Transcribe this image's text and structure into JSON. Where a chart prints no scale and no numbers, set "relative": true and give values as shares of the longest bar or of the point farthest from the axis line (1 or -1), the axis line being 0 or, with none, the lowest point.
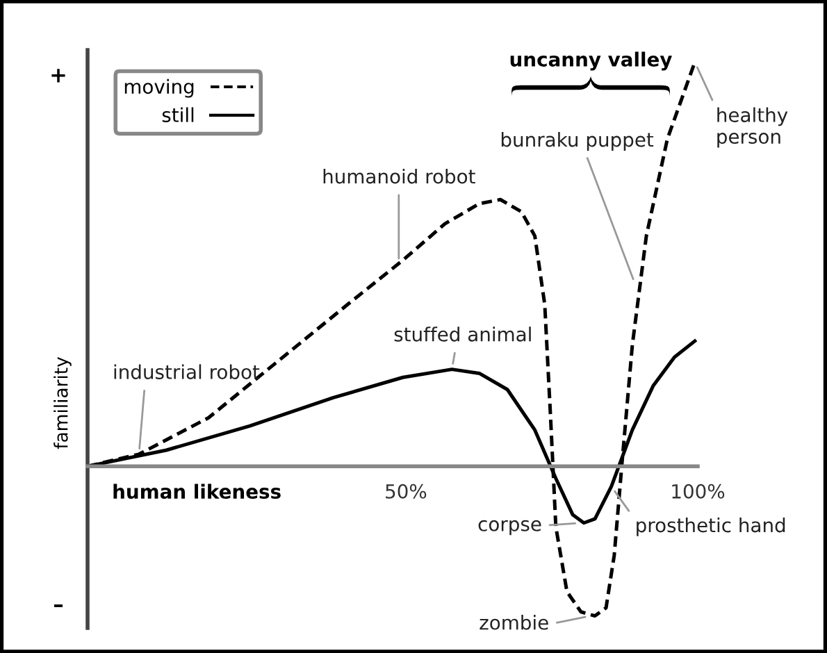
{
  "chart_data": {
    "type": "line",
    "relative": true,
    "xlabel": "human likeness",
    "ylabel": "familiarity",
    "xlim": [
      -4.5,
      100
    ],
    "xticks": [
      {
        "value": 50,
        "label": "50%"
      },
      {
        "value": 100,
        "label": "100%"
      }
    ],
    "legend": "top left",
    "grid": false,
    "marker": "none",
    "series": [
      {
        "name": "moving",
        "color": "#000000",
        "line_style": "dashed",
        "x": [
          -4.5,
          4.3,
          16.2,
          28.1,
          40,
          49.5,
          56.7,
          62.6,
          66.2,
          69.8,
          72.1,
          73.8,
          74.8,
          75.7,
          77.6,
          80,
          82.4,
          84.3,
          85.7,
          87.1,
          88.8,
          91.2,
          94.8,
          99.5
        ],
        "values": [
          0,
          0.03,
          0.12,
          0.26,
          0.4,
          0.51,
          0.6,
          0.65,
          0.66,
          0.63,
          0.57,
          0.4,
          0.12,
          -0.15,
          -0.31,
          -0.36,
          -0.37,
          -0.35,
          -0.22,
          0.02,
          0.3,
          0.57,
          0.81,
          1.0
        ]
      },
      {
        "name": "still",
        "color": "#000000",
        "line_style": "solid",
        "x": [
          -4.5,
          9,
          23.3,
          37.6,
          49.5,
          57.9,
          62.6,
          67.4,
          72.1,
          75.7,
          78.6,
          80.5,
          82.4,
          85.2,
          88.8,
          92.4,
          96,
          99.5
        ],
        "values": [
          0,
          0.04,
          0.1,
          0.17,
          0.22,
          0.24,
          0.23,
          0.19,
          0.09,
          -0.03,
          -0.12,
          -0.14,
          -0.13,
          -0.05,
          0.09,
          0.2,
          0.27,
          0.31
        ]
      }
    ],
    "annotations": [
      "+",
      "–",
      "uncanny valley",
      {
        "text": "industrial robot",
        "x": 4.3,
        "y": 0.03
      },
      {
        "text": "humanoid robot",
        "x": 48.8,
        "y": 0.5
      },
      {
        "text": "stuffed animal",
        "x": 57.9,
        "y": 0.24
      },
      {
        "text": "bunraku puppet",
        "x": 89.3,
        "y": 0.45
      },
      {
        "text": "healthy\nperson",
        "x": 99.5,
        "y": 1.0
      },
      {
        "text": "corpse",
        "x": 80,
        "y": -0.14
      },
      {
        "text": "prosthetic hand",
        "x": 85.2,
        "y": -0.05
      },
      {
        "text": "zombie",
        "x": 81.7,
        "y": -0.37
      }
    ]
  }
}
